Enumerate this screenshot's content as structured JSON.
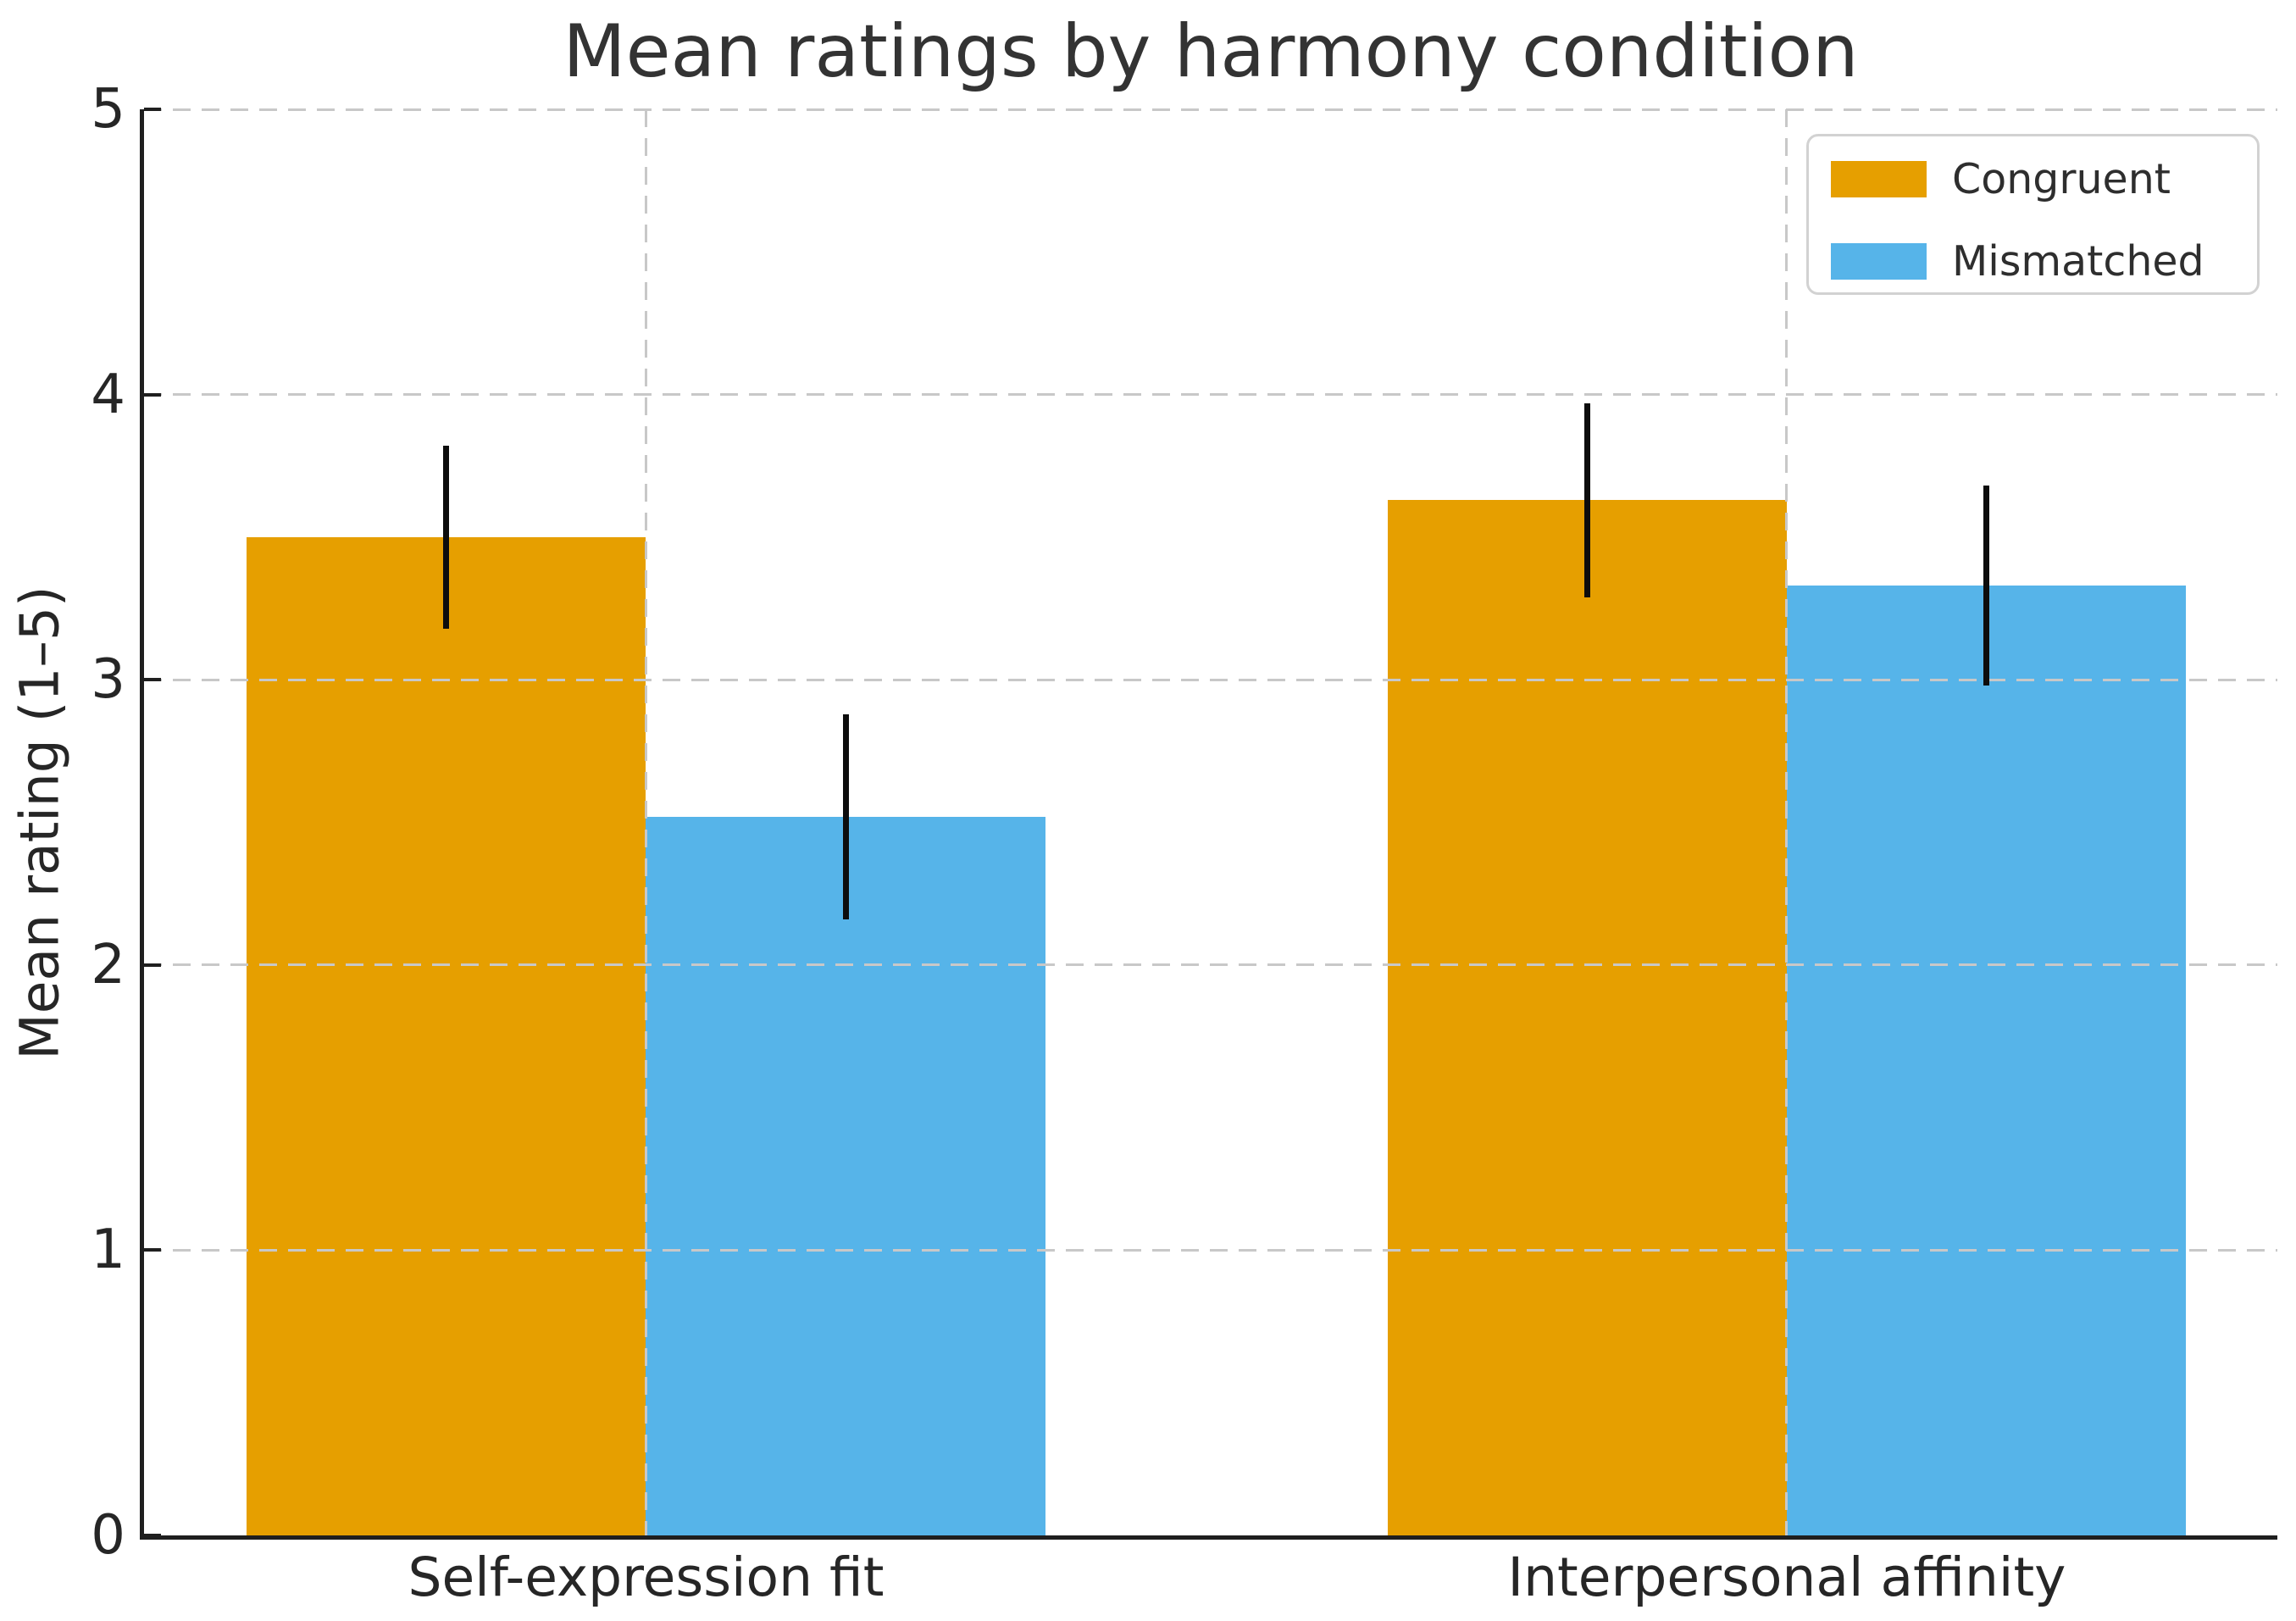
{
  "chart_data": {
    "type": "bar",
    "title": "Mean ratings by harmony condition",
    "ylabel": "Mean rating (1–5)",
    "xlabel": "",
    "categories": [
      "Self-expression fit",
      "Interpersonal affinity"
    ],
    "series": [
      {
        "name": "Congruent",
        "color": "#E69F00",
        "values": [
          3.5,
          3.63
        ],
        "errors": [
          0.32,
          0.34
        ]
      },
      {
        "name": "Mismatched",
        "color": "#56B4E9",
        "values": [
          2.52,
          3.33
        ],
        "errors": [
          0.36,
          0.35
        ]
      }
    ],
    "ylim": [
      0,
      5
    ],
    "yticks": [
      0,
      1,
      2,
      3,
      4,
      5
    ],
    "xlim": [
      -0.44,
      1.43
    ],
    "group_centers": [
      0,
      1
    ],
    "bar_width": 0.35,
    "grid": true,
    "grid_style": "dashed",
    "grid_color": "#c8c8c8",
    "axis_color": "#1f1f1f",
    "text_color": "#262626",
    "error_bar_color": "#0d0d0d",
    "legend_position": "upper right"
  }
}
